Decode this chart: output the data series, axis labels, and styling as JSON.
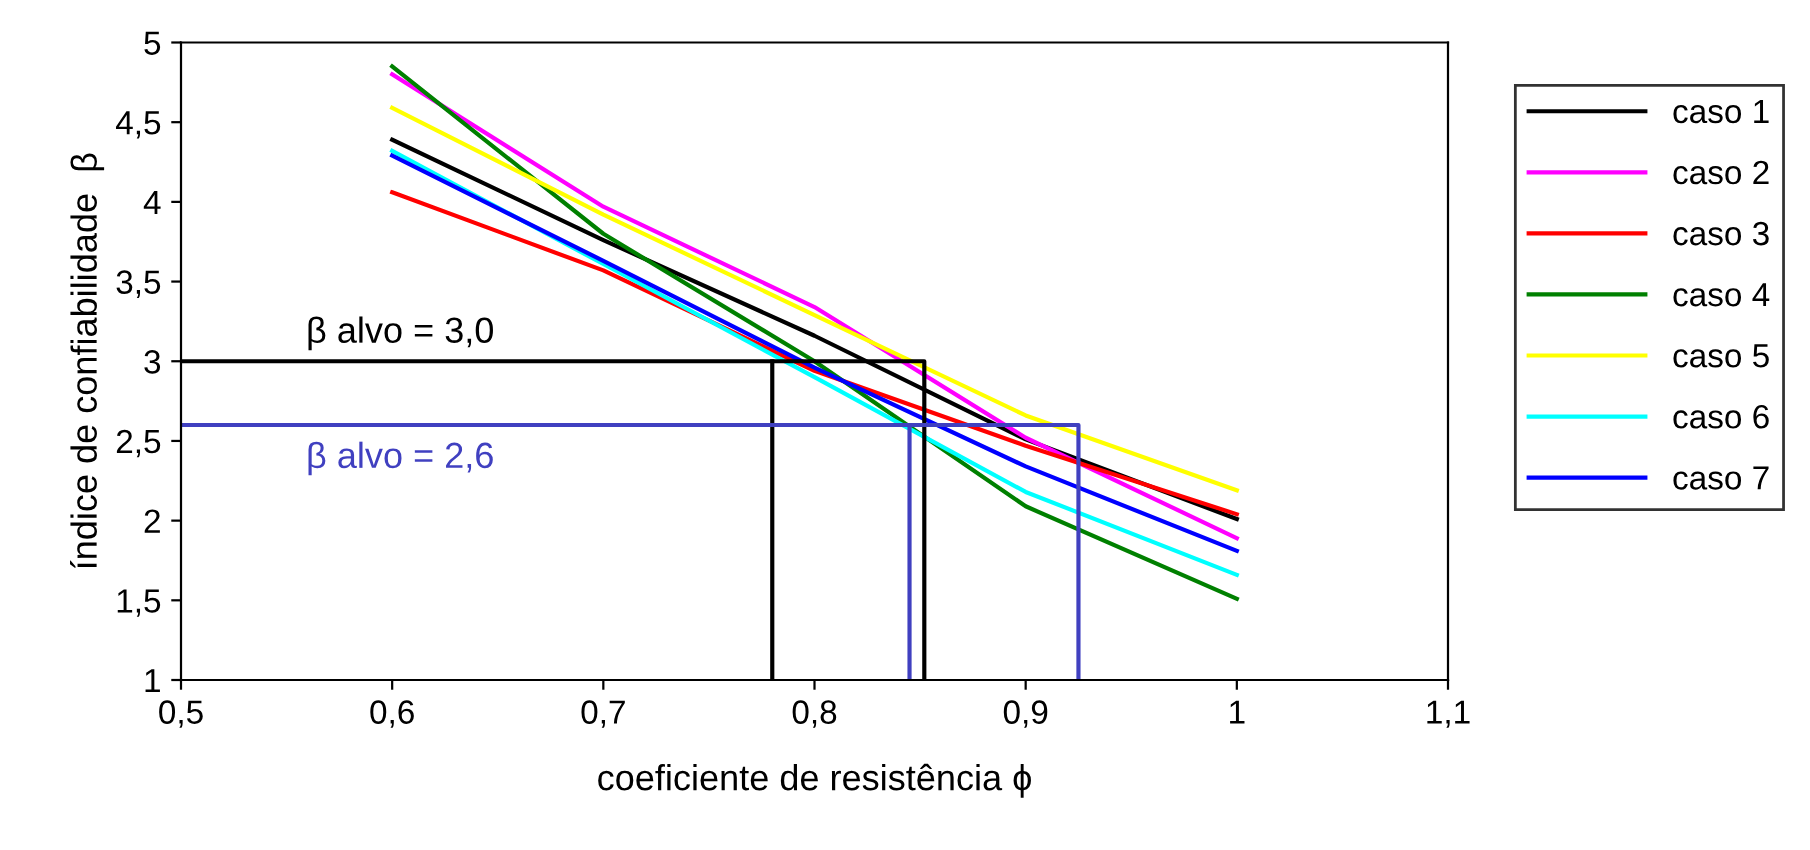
{
  "chart_data": {
    "type": "line",
    "xlabel": "coeficiente de resistência ϕ",
    "ylabel": "índice de confiabilidade  β",
    "xlim": [
      0.5,
      1.1
    ],
    "ylim": [
      1,
      5
    ],
    "xticks": [
      {
        "value": 0.5,
        "label": "0,5"
      },
      {
        "value": 0.6,
        "label": "0,6"
      },
      {
        "value": 0.7,
        "label": "0,7"
      },
      {
        "value": 0.8,
        "label": "0,8"
      },
      {
        "value": 0.9,
        "label": "0,9"
      },
      {
        "value": 1,
        "label": "1"
      },
      {
        "value": 1.1,
        "label": "1,1"
      }
    ],
    "yticks": [
      1,
      {
        "value": 1.5,
        "label": "1,5"
      },
      2,
      {
        "value": 2.5,
        "label": "2,5"
      },
      3,
      {
        "value": 3.5,
        "label": "3,5"
      },
      4,
      {
        "value": 4.5,
        "label": "4,5"
      },
      5
    ],
    "x": [
      0.6,
      0.7,
      0.8,
      0.9,
      1.0
    ],
    "series": [
      {
        "name": "caso 1",
        "color": "#000000",
        "values": [
          4.39,
          3.76,
          3.16,
          2.51,
          2.01
        ]
      },
      {
        "name": "caso 2",
        "color": "#ff00ff",
        "values": [
          4.8,
          3.97,
          3.34,
          2.52,
          1.89
        ]
      },
      {
        "name": "caso 3",
        "color": "#ff0000",
        "values": [
          4.06,
          3.57,
          2.94,
          2.47,
          2.04
        ]
      },
      {
        "name": "caso 4",
        "color": "#008000",
        "values": [
          4.85,
          3.8,
          3.0,
          2.09,
          1.51
        ]
      },
      {
        "name": "caso 5",
        "color": "#ffff00",
        "values": [
          4.59,
          3.92,
          3.29,
          2.66,
          2.19
        ]
      },
      {
        "name": "caso 6",
        "color": "#00ffff",
        "values": [
          4.32,
          3.61,
          2.9,
          2.18,
          1.66
        ]
      },
      {
        "name": "caso 7",
        "color": "#0000ff",
        "values": [
          4.29,
          3.63,
          2.96,
          2.34,
          1.81
        ]
      },
      {
        "color": "#000000",
        "x": [
          0.5,
          0.852,
          0.852
        ],
        "values": [
          3,
          3,
          1
        ]
      },
      {
        "color": "#000000",
        "x": [
          0.78,
          0.78
        ],
        "values": [
          3,
          1
        ]
      },
      {
        "color": "#4040c0",
        "x": [
          0.5,
          0.925,
          0.925
        ],
        "values": [
          2.6,
          2.6,
          1
        ]
      },
      {
        "color": "#4040c0",
        "x": [
          0.845,
          0.845
        ],
        "values": [
          2.6,
          1
        ]
      }
    ],
    "annotations": [
      "β alvo = 3,0",
      "β alvo = 2,6"
    ],
    "legend": "right",
    "grid": false,
    "marker": "none",
    "line_style": "solid"
  }
}
